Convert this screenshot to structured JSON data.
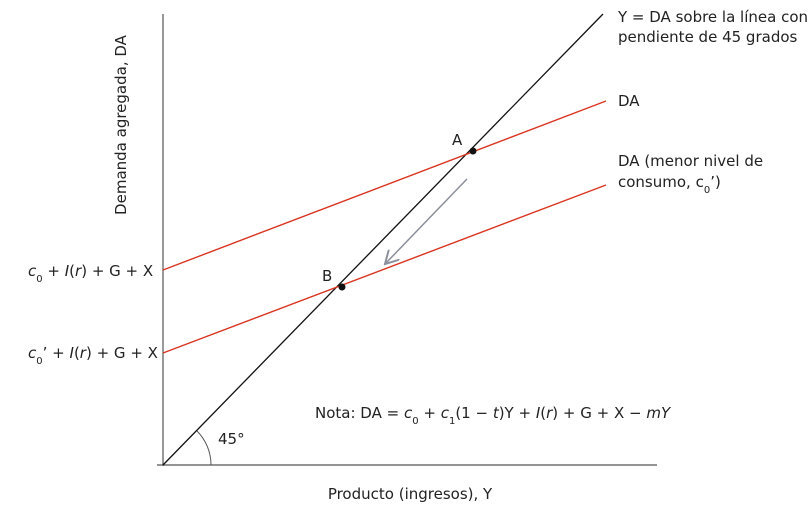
{
  "y_axis_label": "Demanda agregada, DA",
  "x_axis_label": "Producto (ingresos), Y",
  "lines": {
    "identity": [
      "Y = DA sobre la línea con",
      "pendiente de 45 grados"
    ],
    "da": "DA",
    "da_lower": [
      "DA (menor nivel de",
      "consumo, c",
      "0",
      "’)"
    ]
  },
  "points": [
    "A",
    "B"
  ],
  "angle": "45°",
  "intercepts": [
    [
      "c",
      "0",
      " + ",
      "I",
      "(",
      "r",
      ") + G + X"
    ],
    [
      "c",
      "0",
      "’ + ",
      "I",
      "(",
      "r",
      ") + G + X"
    ]
  ],
  "note": [
    "Nota: DA = ",
    "c",
    "0",
    " + ",
    "c",
    "1",
    "(1 − ",
    "t",
    ")Y + ",
    "I",
    "(",
    "r",
    ") + G + X − ",
    "m",
    "Y"
  ]
}
